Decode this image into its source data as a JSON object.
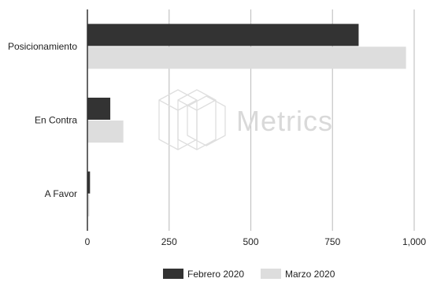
{
  "watermark": {
    "text": "Metrics"
  },
  "chart_data": {
    "type": "bar",
    "orientation": "horizontal",
    "categories": [
      "Posicionamiento",
      "En Contra",
      "A Favor"
    ],
    "series": [
      {
        "name": "Febrero 2020",
        "color": "#333333",
        "values": [
          830,
          70,
          8
        ]
      },
      {
        "name": "Marzo 2020",
        "color": "#dddddd",
        "values": [
          975,
          110,
          6
        ]
      }
    ],
    "xlim": [
      0,
      1000
    ],
    "x_ticks": [
      0,
      250,
      500,
      750,
      1000
    ],
    "x_tick_labels": [
      "0",
      "250",
      "500",
      "750",
      "1,000"
    ],
    "grid": "vertical",
    "legend_position": "bottom"
  }
}
